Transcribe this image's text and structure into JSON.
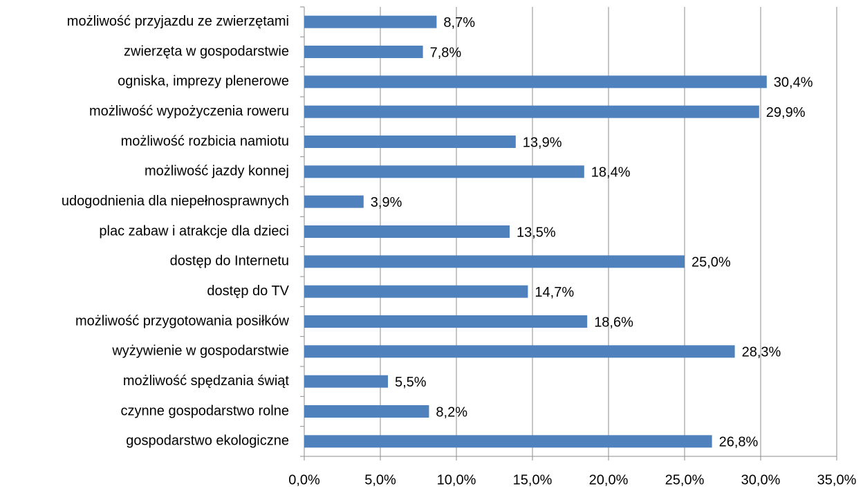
{
  "chart_data": {
    "type": "bar",
    "orientation": "horizontal",
    "categories": [
      "możliwość przyjazdu ze zwierzętami",
      "zwierzęta w gospodarstwie",
      "ogniska, imprezy plenerowe",
      "możliwość wypożyczenia roweru",
      "możliwość rozbicia namiotu",
      "możliwość jazdy konnej",
      "udogodnienia dla niepełnosprawnych",
      "plac zabaw i atrakcje dla dzieci",
      "dostęp do Internetu",
      "dostęp do TV",
      "możliwość przygotowania posiłków",
      "wyżywienie w gospodarstwie",
      "możliwość spędzania świąt",
      "czynne gospodarstwo rolne",
      "gospodarstwo ekologiczne"
    ],
    "values": [
      8.7,
      7.8,
      30.4,
      29.9,
      13.9,
      18.4,
      3.9,
      13.5,
      25.0,
      14.7,
      18.6,
      28.3,
      5.5,
      8.2,
      26.8
    ],
    "value_labels": [
      "8,7%",
      "7,8%",
      "30,4%",
      "29,9%",
      "13,9%",
      "18,4%",
      "3,9%",
      "13,5%",
      "25,0%",
      "14,7%",
      "18,6%",
      "28,3%",
      "5,5%",
      "8,2%",
      "26,8%"
    ],
    "color": "#4f81bd",
    "xlim": [
      0,
      35
    ],
    "xticks": [
      {
        "value": 0,
        "label": "0,0%"
      },
      {
        "value": 5,
        "label": "5,0%"
      },
      {
        "value": 10,
        "label": "10,0%"
      },
      {
        "value": 15,
        "label": "15,0%"
      },
      {
        "value": 20,
        "label": "20,0%"
      },
      {
        "value": 25,
        "label": "25,0%"
      },
      {
        "value": 30,
        "label": "30,0%"
      },
      {
        "value": 35,
        "label": "35,0%"
      }
    ],
    "grid": true
  }
}
